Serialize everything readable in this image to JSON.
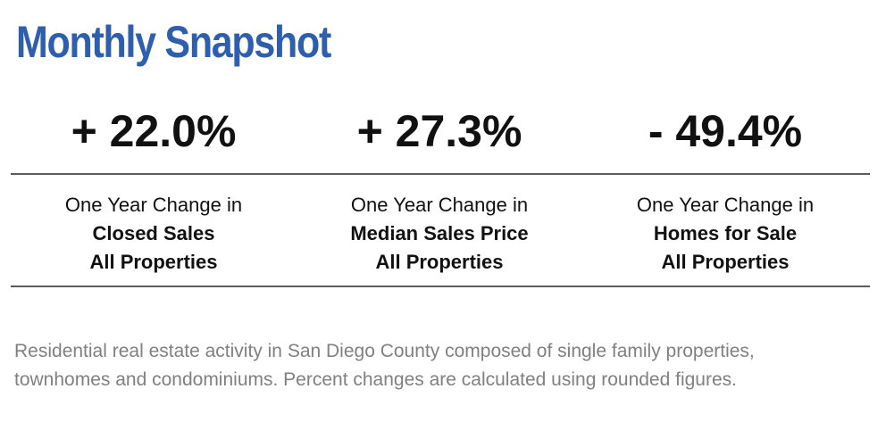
{
  "header": {
    "title": "Monthly Snapshot"
  },
  "stats": [
    {
      "value": "+ 22.0%",
      "label_line1": "One Year Change in",
      "label_line2": "Closed Sales",
      "label_line3": "All Properties"
    },
    {
      "value": "+ 27.3%",
      "label_line1": "One Year Change in",
      "label_line2": "Median Sales Price",
      "label_line3": "All Properties"
    },
    {
      "value": "- 49.4%",
      "label_line1": "One Year Change in",
      "label_line2": "Homes for Sale",
      "label_line3": "All Properties"
    }
  ],
  "footnote": "Residential real estate activity in San Diego County composed of single family properties, townhomes and condominiums. Percent changes are calculated using rounded figures.",
  "colors": {
    "title": "#2e5fae",
    "divider": "#5a5a5a",
    "footnote": "#808080"
  }
}
